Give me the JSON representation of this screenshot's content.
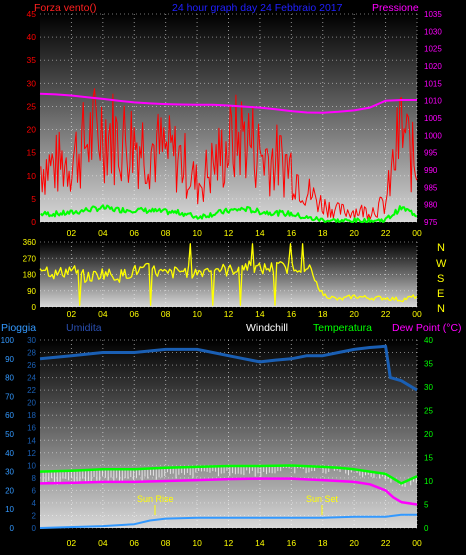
{
  "header": {
    "left": "Forza vento()",
    "center": "24 hour graph day  24 Febbraio 2017",
    "right": "Pressione"
  },
  "mid_header": {
    "pioggia": "Pioggia",
    "umidita": "Umidita",
    "windchill": "Windchill",
    "temperatura": "Temperatura",
    "dew_point": "Dew Point (°C)"
  },
  "compass": [
    "N",
    "W",
    "S",
    "E",
    "N"
  ],
  "annotations": {
    "sunrise": "Sun Rise",
    "sunset": "Sun Set"
  },
  "colors": {
    "wind_gust": "#ff0000",
    "wind_avg": "#00ff00",
    "pressure": "#ff00ff",
    "direction": "#ffff00",
    "humidity": "#1a5fb4",
    "rain": "#3399ff",
    "temperature": "#00ff00",
    "dew_point": "#ff00ff",
    "windchill": "#ffffff"
  },
  "chart_data": [
    {
      "type": "line",
      "x_ticks": [
        "02",
        "04",
        "06",
        "08",
        "10",
        "12",
        "14",
        "16",
        "18",
        "20",
        "22",
        "00"
      ],
      "y_left": {
        "ticks": [
          0,
          5,
          10,
          15,
          20,
          25,
          30,
          35,
          40,
          45
        ],
        "lim": [
          0,
          45
        ]
      },
      "y_right": {
        "ticks": [
          975,
          980,
          985,
          990,
          995,
          1000,
          1005,
          1010,
          1015,
          1020,
          1025,
          1030,
          1035
        ],
        "lim": [
          975,
          1035
        ]
      },
      "series": [
        {
          "name": "Forza vento",
          "axis": "left",
          "x": [
            1,
            2,
            3,
            4,
            5,
            6,
            7,
            8,
            9,
            10,
            11,
            12,
            13,
            14,
            15,
            16,
            17,
            18,
            19,
            20,
            21,
            22,
            23,
            24
          ],
          "values": [
            8,
            9,
            12,
            14,
            12,
            12,
            11,
            10,
            9,
            5,
            8,
            11,
            13,
            10,
            9,
            8,
            4,
            2,
            1,
            1,
            1,
            2,
            14,
            7
          ]
        },
        {
          "name": "Pressione",
          "axis": "right",
          "x": [
            0,
            1,
            2,
            3,
            4,
            5,
            6,
            7,
            8,
            9,
            10,
            11,
            12,
            13,
            14,
            15,
            16,
            17,
            18,
            19,
            20,
            21,
            22,
            23,
            24
          ],
          "values": [
            1012,
            1011.8,
            1011.5,
            1011,
            1010.5,
            1010,
            1009.5,
            1009.2,
            1009,
            1008.9,
            1008.8,
            1008.8,
            1008.6,
            1008.3,
            1008,
            1007.5,
            1007,
            1006.6,
            1006.5,
            1006.8,
            1007.2,
            1008,
            1010,
            1010.2,
            1010.2
          ]
        }
      ]
    },
    {
      "type": "line",
      "x_ticks": [
        "02",
        "04",
        "06",
        "08",
        "10",
        "12",
        "14",
        "16",
        "18",
        "20",
        "22",
        "00"
      ],
      "y": {
        "ticks": [
          0,
          90,
          180,
          270,
          360
        ],
        "lim": [
          0,
          360
        ]
      },
      "series": [
        {
          "name": "Direzione",
          "x": [
            0,
            1,
            2,
            3,
            4,
            5,
            6,
            7,
            8,
            9,
            10,
            11,
            12,
            13,
            14,
            15,
            16,
            17,
            18,
            19,
            20,
            21,
            22,
            23,
            24
          ],
          "values": [
            230,
            180,
            210,
            160,
            190,
            170,
            200,
            210,
            180,
            200,
            190,
            220,
            200,
            230,
            210,
            220,
            220,
            230,
            70,
            40,
            60,
            50,
            50,
            40,
            60
          ]
        }
      ]
    },
    {
      "type": "line",
      "x_ticks": [
        "02",
        "04",
        "06",
        "08",
        "10",
        "12",
        "14",
        "16",
        "18",
        "20",
        "22",
        "00"
      ],
      "y_left_rain": {
        "ticks": [
          0,
          10,
          20,
          30,
          40,
          50,
          60,
          70,
          80,
          90,
          100
        ],
        "lim": [
          0,
          100
        ]
      },
      "y_left_humidity": {
        "ticks": [
          0,
          2,
          4,
          6,
          8,
          10,
          12,
          14,
          16,
          18,
          20,
          22,
          24,
          26,
          28,
          30
        ],
        "lim": [
          0,
          30
        ]
      },
      "y_right": {
        "ticks": [
          0,
          5,
          10,
          15,
          20,
          25,
          30,
          35,
          40
        ],
        "lim": [
          0,
          40
        ]
      },
      "series": [
        {
          "name": "Umidita",
          "axis": "left_humidity",
          "x": [
            0,
            2,
            4,
            6,
            8,
            10,
            11,
            12,
            13,
            14,
            15,
            16,
            17,
            18,
            19,
            20,
            21,
            22,
            22.3,
            23,
            24
          ],
          "values": [
            27,
            27.5,
            28,
            28,
            28.5,
            28.5,
            28,
            27.5,
            27,
            26.5,
            26.8,
            27,
            27.5,
            27.5,
            28,
            28.5,
            28.8,
            29,
            24,
            23.5,
            22
          ]
        },
        {
          "name": "Pioggia",
          "axis": "left_rain",
          "x": [
            0,
            4,
            6,
            7,
            8,
            10,
            12,
            14,
            16,
            18,
            20,
            22,
            23,
            24
          ],
          "values": [
            0,
            1,
            2,
            4,
            5,
            5.5,
            5.5,
            5.5,
            5.5,
            5.5,
            6,
            6,
            7,
            7
          ]
        },
        {
          "name": "Temperatura",
          "axis": "right",
          "x": [
            0,
            2,
            4,
            6,
            8,
            10,
            12,
            14,
            16,
            18,
            19,
            20,
            21,
            22,
            22.5,
            23,
            24
          ],
          "values": [
            12,
            12.2,
            12.5,
            12.5,
            12.8,
            13,
            13.2,
            13.2,
            13.3,
            13,
            12.8,
            12.5,
            12,
            11.5,
            10.5,
            9.5,
            11
          ]
        },
        {
          "name": "Dew Point",
          "axis": "right",
          "x": [
            0,
            2,
            4,
            6,
            8,
            10,
            12,
            14,
            16,
            18,
            19,
            20,
            21,
            22,
            22.5,
            23,
            24
          ],
          "values": [
            9.5,
            9.6,
            9.8,
            9.8,
            10,
            10.2,
            10.4,
            10.5,
            10.5,
            10.2,
            10,
            9.8,
            9.3,
            8,
            6.5,
            5.5,
            5
          ]
        },
        {
          "name": "Windchill",
          "axis": "right",
          "x": [
            0,
            1,
            2,
            3,
            4,
            5,
            6,
            7,
            8,
            9,
            10,
            11,
            12,
            13,
            14,
            15,
            16,
            17,
            18,
            19,
            20,
            21,
            22,
            23,
            24
          ],
          "values": [
            11,
            10.5,
            11,
            10.8,
            11.3,
            11,
            11.5,
            11.2,
            12,
            11.7,
            12.3,
            12.2,
            12.5,
            12.7,
            12.3,
            12.8,
            13,
            12.8,
            13,
            12.8,
            12.5,
            12,
            11.5,
            10,
            10.5
          ]
        }
      ]
    }
  ]
}
